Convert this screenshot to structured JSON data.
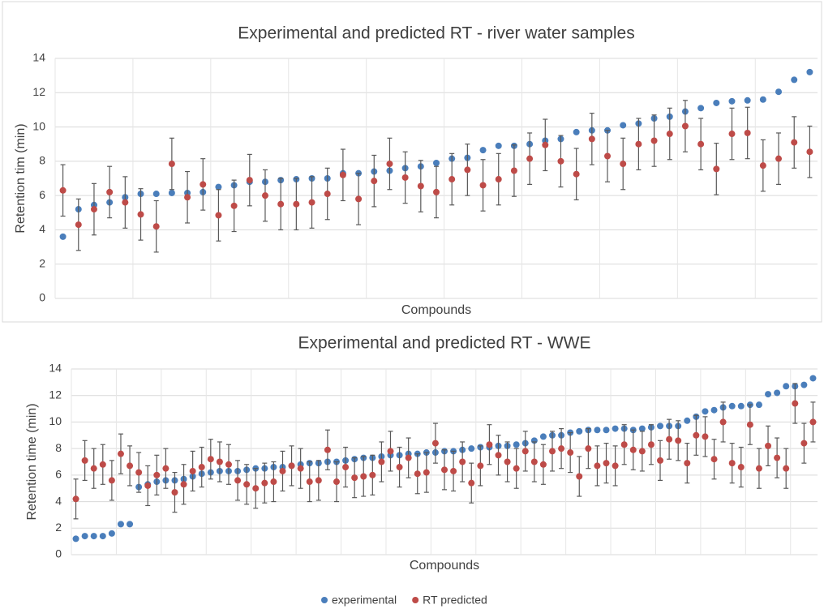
{
  "chart_data": [
    {
      "type": "scatter",
      "title": "Experimental and predicted RT - river water samples",
      "x_label": "Compounds",
      "y_label": "Retention tim (min)",
      "ylim": [
        0,
        14
      ],
      "yticks": [
        0,
        2,
        4,
        6,
        8,
        10,
        12,
        14
      ],
      "grid": true,
      "series": [
        {
          "color": "#4a7ebb",
          "values": [
            3.6,
            5.2,
            5.45,
            5.6,
            5.9,
            6.1,
            6.1,
            6.15,
            6.15,
            6.2,
            6.5,
            6.6,
            6.8,
            6.8,
            6.9,
            6.95,
            7.0,
            7.0,
            7.3,
            7.3,
            7.4,
            7.45,
            7.6,
            7.7,
            7.9,
            8.15,
            8.2,
            8.65,
            8.9,
            8.9,
            9.0,
            9.2,
            9.3,
            9.7,
            9.8,
            9.8,
            10.1,
            10.2,
            10.5,
            10.6,
            10.9,
            11.1,
            11.4,
            11.5,
            11.55,
            11.6,
            12.05,
            12.75,
            13.2
          ]
        },
        {
          "color": "#be4b48",
          "error": 1.5,
          "values": [
            6.3,
            4.3,
            5.2,
            6.2,
            5.6,
            4.9,
            4.2,
            7.85,
            5.9,
            6.65,
            4.85,
            5.4,
            6.9,
            6.0,
            5.5,
            5.5,
            5.6,
            6.1,
            7.2,
            5.8,
            6.85,
            7.85,
            7.05,
            6.55,
            6.2,
            6.95,
            7.5,
            6.6,
            6.95,
            7.45,
            8.15,
            8.95,
            8.0,
            7.25,
            9.3,
            8.3,
            7.85,
            9.0,
            9.2,
            9.6,
            10.05,
            9.0,
            7.55,
            9.6,
            9.65,
            7.75,
            8.15,
            9.1,
            8.55
          ]
        }
      ]
    },
    {
      "type": "scatter",
      "title": "Experimental and predicted RT - WWE",
      "x_label": "Compounds",
      "y_label": "Retention time (min)",
      "ylim": [
        0,
        14
      ],
      "yticks": [
        0,
        2,
        4,
        6,
        8,
        10,
        12,
        14
      ],
      "grid": true,
      "legend": "bottom",
      "series": [
        {
          "name": "experimental",
          "color": "#4a7ebb",
          "values": [
            1.2,
            1.4,
            1.4,
            1.4,
            1.6,
            2.3,
            2.3,
            5.1,
            5.3,
            5.5,
            5.6,
            5.6,
            5.7,
            5.9,
            6.1,
            6.2,
            6.3,
            6.3,
            6.3,
            6.4,
            6.5,
            6.5,
            6.6,
            6.6,
            6.7,
            6.8,
            6.9,
            6.9,
            7.0,
            7.0,
            7.1,
            7.2,
            7.3,
            7.3,
            7.4,
            7.5,
            7.5,
            7.6,
            7.6,
            7.7,
            7.7,
            7.8,
            7.8,
            7.9,
            8.0,
            8.1,
            8.1,
            8.2,
            8.2,
            8.3,
            8.4,
            8.6,
            8.9,
            9.0,
            9.0,
            9.2,
            9.3,
            9.4,
            9.4,
            9.4,
            9.5,
            9.5,
            9.4,
            9.5,
            9.6,
            9.7,
            9.7,
            9.7,
            10.1,
            10.4,
            10.8,
            10.9,
            11.1,
            11.2,
            11.2,
            11.3,
            11.3,
            12.1,
            12.2,
            12.7,
            12.7,
            12.8,
            13.3
          ]
        },
        {
          "name": "RT predicted",
          "color": "#be4b48",
          "error": 1.5,
          "values": [
            4.2,
            7.1,
            6.5,
            6.8,
            5.6,
            7.6,
            6.7,
            6.2,
            5.2,
            6.0,
            6.5,
            4.7,
            5.3,
            6.3,
            6.6,
            7.2,
            7.0,
            6.8,
            5.6,
            5.3,
            5.0,
            5.4,
            5.5,
            6.3,
            6.7,
            6.5,
            5.5,
            5.6,
            7.9,
            5.5,
            6.6,
            5.8,
            5.9,
            6.0,
            7.0,
            7.8,
            6.6,
            7.3,
            6.1,
            6.2,
            8.4,
            6.4,
            6.3,
            7.0,
            5.4,
            6.7,
            8.3,
            7.5,
            7.0,
            6.5,
            7.8,
            7.0,
            6.8,
            7.8,
            8.0,
            7.7,
            5.9,
            8.0,
            6.7,
            6.9,
            6.7,
            8.3,
            7.9,
            7.8,
            8.3,
            7.1,
            8.7,
            8.6,
            6.9,
            9.0,
            8.9,
            7.2,
            10.0,
            6.9,
            6.6,
            9.8,
            6.5,
            8.2,
            7.3,
            6.5,
            11.4,
            8.4,
            10.0
          ]
        }
      ]
    }
  ]
}
